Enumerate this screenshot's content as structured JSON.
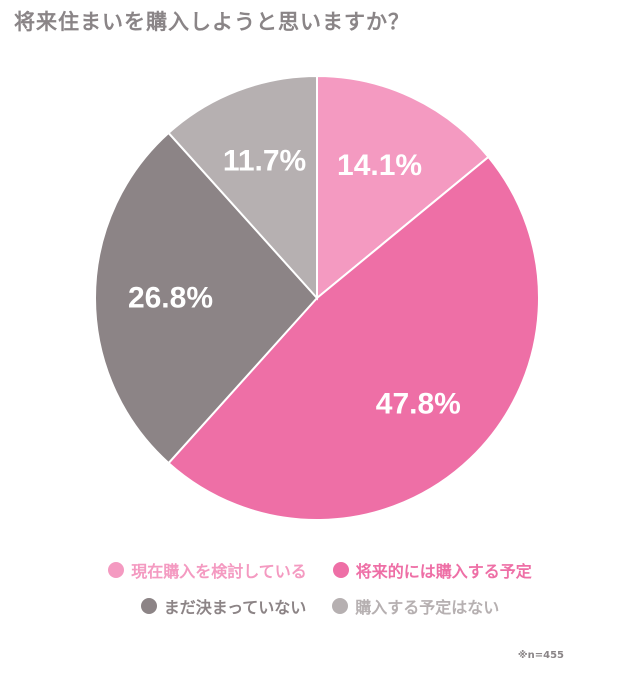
{
  "title": "将来住まいを購入しようと思いますか？",
  "note": "※n=455",
  "chart_data": {
    "type": "pie",
    "start": "12 o'clock",
    "direction": "clockwise",
    "slices": [
      {
        "label": "現在購入を検討している",
        "value": 14.1,
        "display": "14.1%",
        "color": "#f49ac1"
      },
      {
        "label": "将来的には購入する予定",
        "value": 47.8,
        "display": "47.8%",
        "color": "#ee6fa6"
      },
      {
        "label": "まだ決まっていない",
        "value": 26.8,
        "display": "26.8%",
        "color": "#8c8486"
      },
      {
        "label": "購入する予定はない",
        "value": 11.7,
        "display": "11.7%",
        "color": "#b6b0b1"
      }
    ],
    "legend_position": "bottom"
  }
}
